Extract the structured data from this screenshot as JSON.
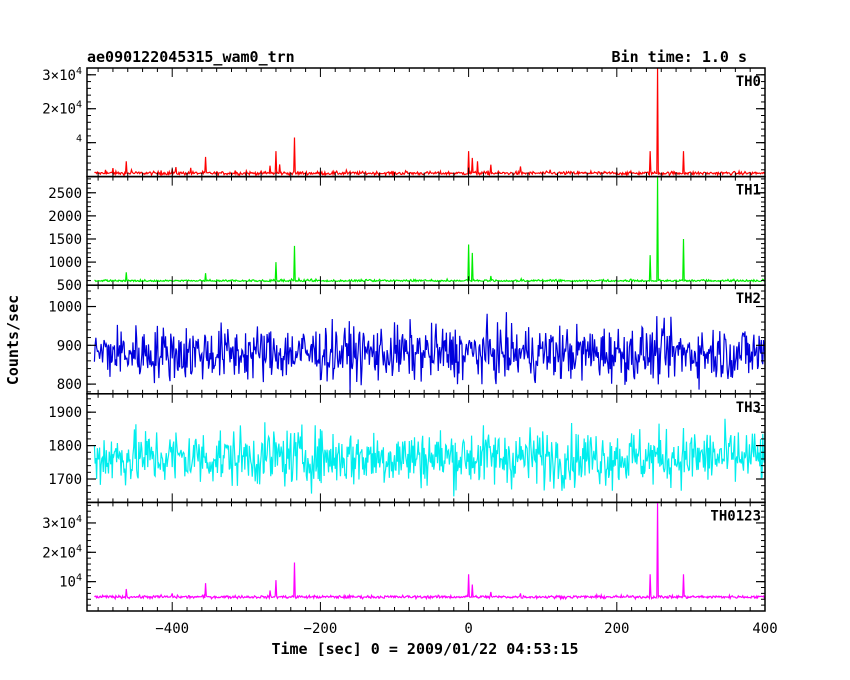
{
  "header": {
    "title": "ae090122045315_wam0_trn",
    "bin_time": "Bin time: 1.0 s"
  },
  "chart_data": {
    "type": "line",
    "xlabel": "Time [sec] 0 = 2009/01/22 04:53:15",
    "ylabel": "Counts/sec",
    "xlim": [
      -515,
      400
    ],
    "x_ticks": [
      -400,
      -200,
      0,
      200,
      400
    ],
    "x_tick_labels": [
      "−400",
      "−200",
      "0",
      "200",
      "400"
    ],
    "grid": false,
    "panels": [
      {
        "name": "TH0",
        "color": "#ff0000",
        "ylim": [
          0,
          32000
        ],
        "y_ticks": [
          10000,
          20000,
          30000
        ],
        "y_tick_labels": [
          {
            "mant": "",
            "exp": "4"
          },
          {
            "mant": "2×10",
            "exp": "4"
          },
          {
            "mant": "3×10",
            "exp": "4"
          }
        ],
        "baseline": 1000,
        "noise": 350,
        "spikes": [
          [
            -490,
            2000
          ],
          [
            -480,
            2500
          ],
          [
            -462,
            4500
          ],
          [
            -455,
            2000
          ],
          [
            -415,
            1800
          ],
          [
            -400,
            2200
          ],
          [
            -395,
            2800
          ],
          [
            -375,
            2600
          ],
          [
            -355,
            5800
          ],
          [
            -315,
            1800
          ],
          [
            -300,
            1700
          ],
          [
            -268,
            3200
          ],
          [
            -260,
            7500
          ],
          [
            -255,
            3600
          ],
          [
            -235,
            11500
          ],
          [
            -165,
            1900
          ],
          [
            -85,
            1700
          ],
          [
            0,
            7500
          ],
          [
            5,
            5500
          ],
          [
            12,
            4500
          ],
          [
            30,
            3500
          ],
          [
            70,
            3000
          ],
          [
            110,
            2000
          ],
          [
            165,
            1600
          ],
          [
            245,
            7500
          ],
          [
            255,
            32000
          ],
          [
            290,
            7500
          ]
        ]
      },
      {
        "name": "TH1",
        "color": "#00ee00",
        "ylim": [
          500,
          2850
        ],
        "y_ticks": [
          500,
          1000,
          1500,
          2000,
          2500
        ],
        "y_tick_labels": [
          "500",
          "1000",
          "1500",
          "2000",
          "2500"
        ],
        "baseline": 580,
        "noise": 30,
        "spikes": [
          [
            -462,
            780
          ],
          [
            -355,
            760
          ],
          [
            -260,
            1000
          ],
          [
            -235,
            1350
          ],
          [
            0,
            1380
          ],
          [
            5,
            1200
          ],
          [
            30,
            700
          ],
          [
            245,
            1150
          ],
          [
            255,
            2850
          ],
          [
            290,
            1500
          ]
        ]
      },
      {
        "name": "TH2",
        "color": "#0000dd",
        "ylim": [
          775,
          1055
        ],
        "y_ticks": [
          800,
          900,
          1000
        ],
        "y_tick_labels": [
          "800",
          "900",
          "1000"
        ],
        "baseline": 880,
        "noise": 50,
        "spikes": []
      },
      {
        "name": "TH3",
        "color": "#00eeee",
        "ylim": [
          1630,
          1955
        ],
        "y_ticks": [
          1700,
          1800,
          1900
        ],
        "y_tick_labels": [
          "1700",
          "1800",
          "1900"
        ],
        "baseline": 1765,
        "noise": 60,
        "spikes": []
      },
      {
        "name": "TH0123",
        "color": "#ff00ff",
        "ylim": [
          0,
          37000
        ],
        "y_ticks": [
          10000,
          20000,
          30000
        ],
        "y_tick_labels": [
          {
            "mant": "10",
            "exp": "4"
          },
          {
            "mant": "2×10",
            "exp": "4"
          },
          {
            "mant": "3×10",
            "exp": "4"
          }
        ],
        "baseline": 4800,
        "noise": 350,
        "spikes": [
          [
            -462,
            7500
          ],
          [
            -415,
            5500
          ],
          [
            -400,
            6000
          ],
          [
            -355,
            9500
          ],
          [
            -268,
            7000
          ],
          [
            -260,
            10500
          ],
          [
            -235,
            16500
          ],
          [
            0,
            12500
          ],
          [
            5,
            9000
          ],
          [
            30,
            6500
          ],
          [
            70,
            6000
          ],
          [
            245,
            12500
          ],
          [
            255,
            37000
          ],
          [
            290,
            12500
          ]
        ]
      }
    ]
  }
}
